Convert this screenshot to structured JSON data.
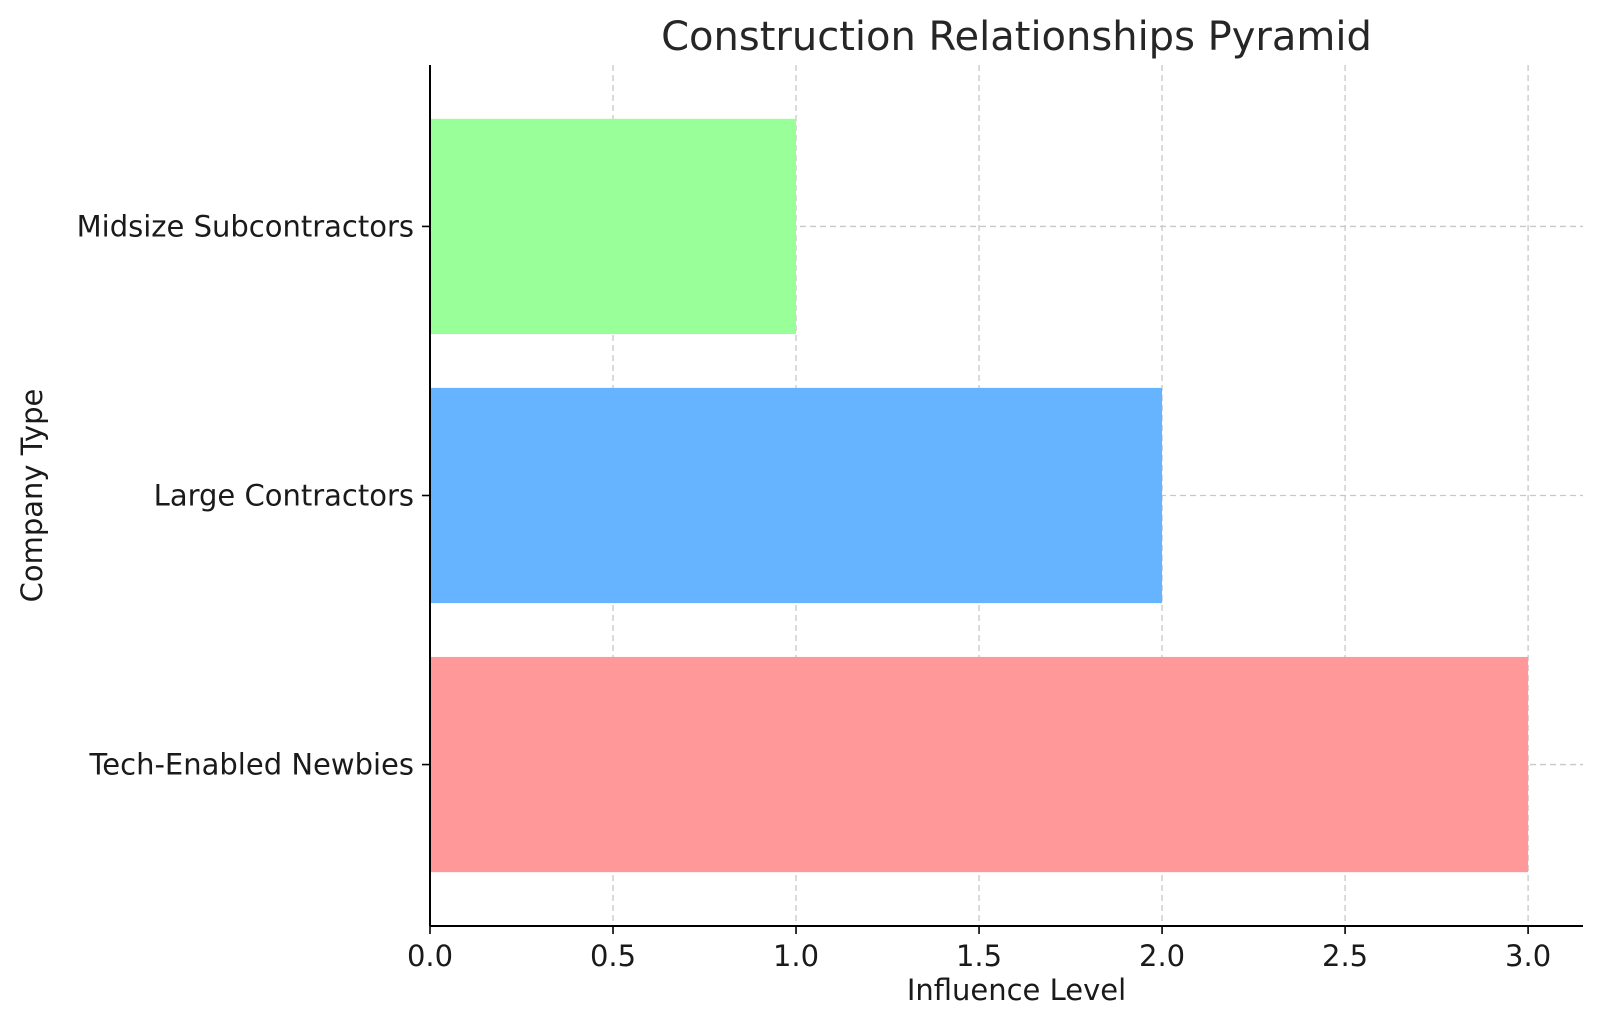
{
  "chart_data": {
    "type": "bar",
    "orientation": "horizontal",
    "title": "Construction Relationships Pyramid",
    "xlabel": "Influence Level",
    "ylabel": "Company Type",
    "categories": [
      "Tech-Enabled Newbies",
      "Large Contractors",
      "Midsize Subcontractors"
    ],
    "values": [
      3,
      2,
      1
    ],
    "colors": [
      "#ff9999",
      "#66b3ff",
      "#99ff99"
    ],
    "xlim": [
      0,
      3.15
    ],
    "xticks": [
      "0.0",
      "0.5",
      "1.0",
      "1.5",
      "2.0",
      "2.5",
      "3.0"
    ],
    "grid": true,
    "legend": "none"
  }
}
